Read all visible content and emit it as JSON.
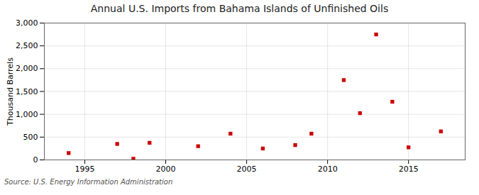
{
  "chart_data": {
    "type": "scatter",
    "title": "Annual U.S. Imports from Bahama Islands of Unfinished Oils",
    "ylabel": "Thousand Barrels",
    "source": "Source: U.S. Energy Information Administration",
    "x": [
      1994,
      1997,
      1998,
      1999,
      2002,
      2004,
      2006,
      2008,
      2009,
      2011,
      2012,
      2013,
      2014,
      2015,
      2017
    ],
    "values": [
      150,
      350,
      25,
      375,
      300,
      575,
      250,
      325,
      575,
      1750,
      1025,
      2750,
      1275,
      275,
      625
    ],
    "color": "#cc0000",
    "marker": "square",
    "xlim": [
      1992.5,
      2018.5
    ],
    "xticks": [
      1995,
      2000,
      2005,
      2010,
      2015
    ],
    "ylim": [
      0,
      3000
    ],
    "yticks": [
      0,
      500,
      {
        "value": 1000,
        "label": "1,000"
      },
      {
        "value": 1500,
        "label": "1,500"
      },
      {
        "value": 2000,
        "label": "2,000"
      },
      {
        "value": 2500,
        "label": "2,500"
      },
      {
        "value": 3000,
        "label": "3,000"
      }
    ],
    "grid": true
  }
}
